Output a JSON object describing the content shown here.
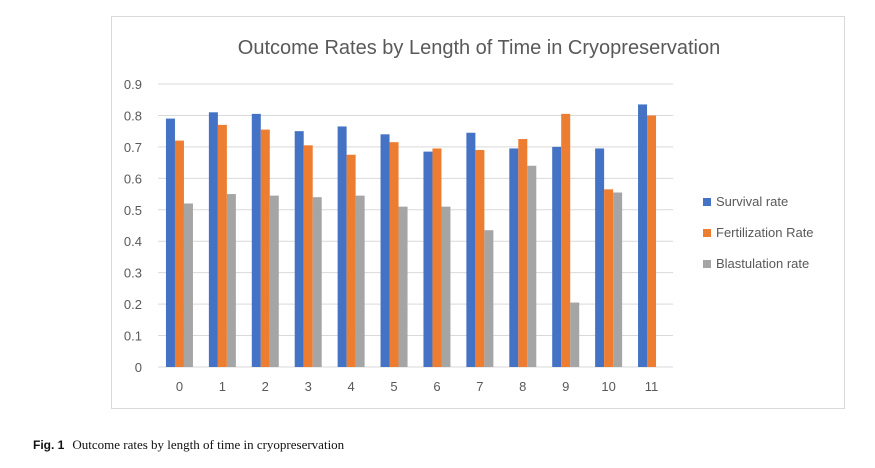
{
  "chart_data": {
    "type": "bar",
    "title": "Outcome Rates by Length of Time in Cryopreservation",
    "xlabel": "",
    "ylabel": "",
    "ylim": [
      0,
      0.9
    ],
    "yticks": [
      "0",
      "0.1",
      "0.2",
      "0.3",
      "0.4",
      "0.5",
      "0.6",
      "0.7",
      "0.8",
      "0.9"
    ],
    "grid": true,
    "legend_position": "right",
    "categories": [
      "0",
      "1",
      "2",
      "3",
      "4",
      "5",
      "6",
      "7",
      "8",
      "9",
      "10",
      "11"
    ],
    "series": [
      {
        "name": "Survival rate",
        "color": "#4472c4",
        "values": [
          0.79,
          0.81,
          0.805,
          0.75,
          0.765,
          0.74,
          0.685,
          0.745,
          0.695,
          0.7,
          0.695,
          0.835
        ]
      },
      {
        "name": "Fertilization Rate",
        "color": "#ed7d31",
        "values": [
          0.72,
          0.77,
          0.755,
          0.705,
          0.675,
          0.715,
          0.695,
          0.69,
          0.725,
          0.805,
          0.565,
          0.8
        ]
      },
      {
        "name": "Blastulation rate",
        "color": "#a5a5a5",
        "values": [
          0.52,
          0.55,
          0.545,
          0.54,
          0.545,
          0.51,
          0.51,
          0.435,
          0.64,
          0.205,
          0.555,
          null
        ]
      }
    ]
  },
  "caption": {
    "label": "Fig. 1",
    "text": "Outcome rates by length of time in cryopreservation"
  }
}
